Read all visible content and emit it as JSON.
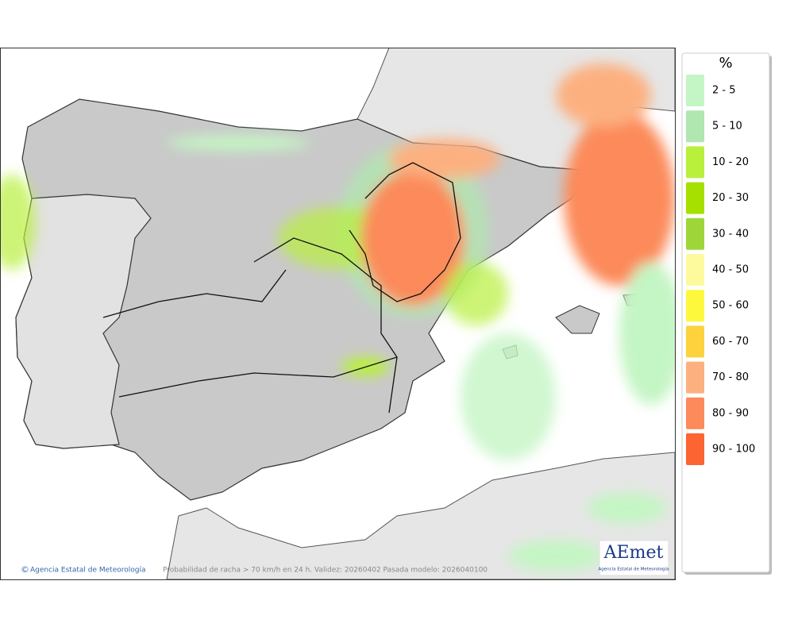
{
  "legend": {
    "title": "%",
    "items": [
      {
        "label": "2 - 5",
        "color": "#c4f5c4"
      },
      {
        "label": "5 - 10",
        "color": "#b0e6b0"
      },
      {
        "label": "10 - 20",
        "color": "#b8f03c"
      },
      {
        "label": "20 - 30",
        "color": "#a6e000"
      },
      {
        "label": "30 - 40",
        "color": "#9ed63a"
      },
      {
        "label": "40 - 50",
        "color": "#fdfa9e"
      },
      {
        "label": "50 - 60",
        "color": "#fdf83c"
      },
      {
        "label": "60 - 70",
        "color": "#fdd23c"
      },
      {
        "label": "70 - 80",
        "color": "#fcb080"
      },
      {
        "label": "80 - 90",
        "color": "#fc8a5a"
      },
      {
        "label": "90 - 100",
        "color": "#fc6432"
      }
    ]
  },
  "footer": {
    "credit": "Agencia Estatal de Meteorología",
    "description": "Probabilidad de racha > 70 km/h en 24 h. Validez: 20260402 Pasada modelo: 2026040100"
  },
  "logo": {
    "name": "AEmet",
    "subtitle": "Agencia Estatal de Meteorología"
  }
}
